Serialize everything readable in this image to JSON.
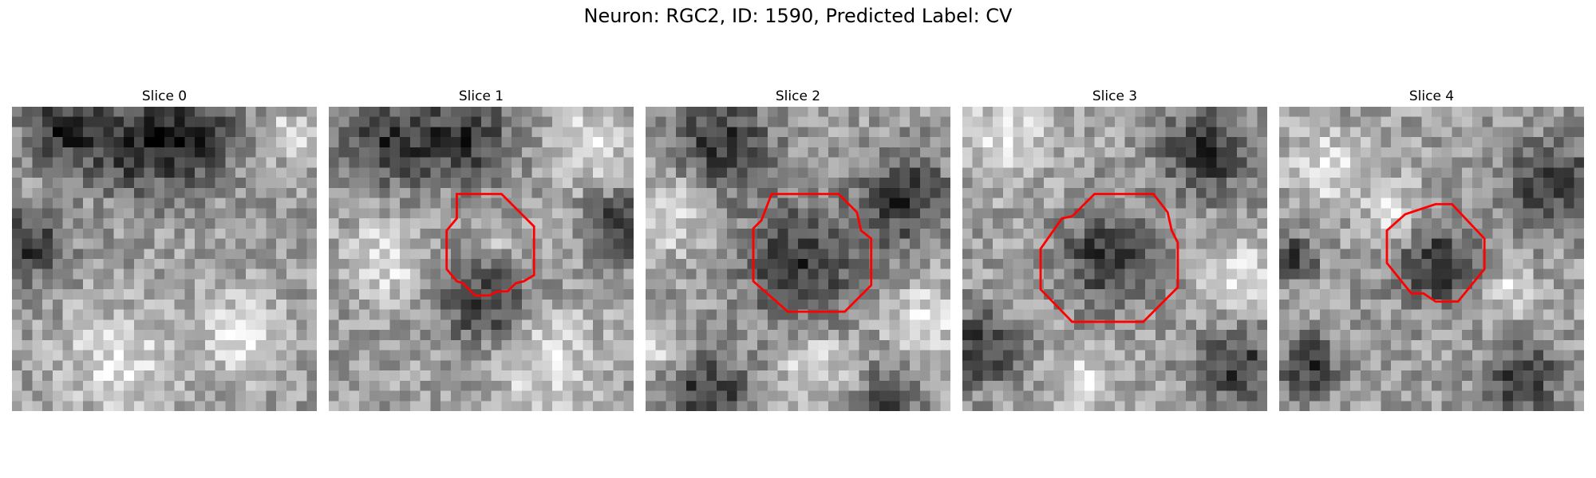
{
  "figure": {
    "title": "Neuron: RGC2, ID: 1590, Predicted Label: CV"
  },
  "outline_color": "#ff0000",
  "colormap": "gray",
  "slices": [
    {
      "title": "Slice 0",
      "has_outline": false,
      "dark_regions": [
        [
          0.16,
          0.07,
          0.1
        ],
        [
          0.4,
          0.12,
          0.14
        ],
        [
          0.6,
          0.1,
          0.12
        ],
        [
          0.05,
          0.45,
          0.1
        ]
      ],
      "bright_regions": [
        [
          0.9,
          0.1,
          0.06
        ],
        [
          0.35,
          0.85,
          0.14
        ],
        [
          0.75,
          0.75,
          0.12
        ]
      ]
    },
    {
      "title": "Slice 1",
      "has_outline": true,
      "dark_regions": [
        [
          0.2,
          0.12,
          0.12
        ],
        [
          0.45,
          0.1,
          0.12
        ],
        [
          0.52,
          0.65,
          0.12
        ],
        [
          0.95,
          0.4,
          0.09
        ]
      ],
      "bright_regions": [
        [
          0.85,
          0.12,
          0.1
        ],
        [
          0.18,
          0.5,
          0.1
        ],
        [
          0.7,
          0.82,
          0.14
        ],
        [
          0.57,
          0.45,
          0.03
        ]
      ]
    },
    {
      "title": "Slice 2",
      "has_outline": true,
      "dark_regions": [
        [
          0.52,
          0.52,
          0.16
        ],
        [
          0.25,
          0.12,
          0.13
        ],
        [
          0.85,
          0.3,
          0.12
        ],
        [
          0.2,
          0.95,
          0.12
        ],
        [
          0.8,
          0.95,
          0.08
        ]
      ],
      "bright_regions": [
        [
          0.08,
          0.35,
          0.1
        ],
        [
          0.92,
          0.7,
          0.1
        ],
        [
          0.55,
          0.85,
          0.1
        ],
        [
          0.05,
          0.8,
          0.06
        ]
      ]
    },
    {
      "title": "Slice 3",
      "has_outline": true,
      "dark_regions": [
        [
          0.48,
          0.5,
          0.13
        ],
        [
          0.8,
          0.15,
          0.12
        ],
        [
          0.05,
          0.8,
          0.1
        ],
        [
          0.9,
          0.85,
          0.1
        ]
      ],
      "bright_regions": [
        [
          0.15,
          0.1,
          0.12
        ],
        [
          0.9,
          0.55,
          0.1
        ],
        [
          0.4,
          0.9,
          0.08
        ]
      ]
    },
    {
      "title": "Slice 4",
      "has_outline": true,
      "dark_regions": [
        [
          0.52,
          0.52,
          0.11
        ],
        [
          0.9,
          0.25,
          0.12
        ],
        [
          0.05,
          0.5,
          0.06
        ],
        [
          0.8,
          0.9,
          0.1
        ],
        [
          0.1,
          0.85,
          0.08
        ]
      ],
      "bright_regions": [
        [
          0.15,
          0.2,
          0.1
        ],
        [
          0.75,
          0.6,
          0.06
        ],
        [
          0.38,
          0.35,
          0.08
        ]
      ]
    }
  ]
}
